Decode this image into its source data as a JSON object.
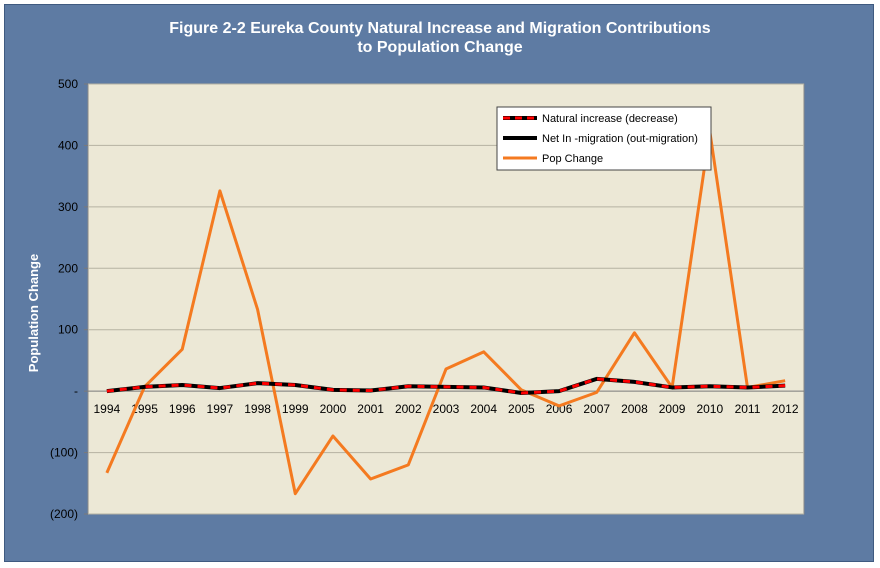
{
  "chart_data": {
    "type": "line",
    "title": [
      "Figure 2-2 Eureka County Natural Increase and Migration Contributions",
      "to Population Change"
    ],
    "ylabel": "Population Change",
    "xlabel": "",
    "ylim": [
      -200,
      500
    ],
    "yticks": [
      500,
      400,
      300,
      200,
      100,
      0,
      -100,
      -200
    ],
    "ytick_labels": [
      "500",
      "400",
      "300",
      "200",
      "100",
      "-",
      "(100)",
      "(200)"
    ],
    "categories": [
      "1994",
      "1995",
      "1996",
      "1997",
      "1998",
      "1999",
      "2000",
      "2001",
      "2002",
      "2003",
      "2004",
      "2005",
      "2006",
      "2007",
      "2008",
      "2009",
      "2010",
      "2011",
      "2012"
    ],
    "grid": true,
    "legend_position": "top-right",
    "series": [
      {
        "name": "Natural increase (decrease)",
        "color": "#ff0000",
        "style": "dashed-over-black",
        "values": [
          0,
          7,
          10,
          5,
          13,
          10,
          2,
          1,
          8,
          7,
          6,
          -3,
          0,
          20,
          15,
          6,
          8,
          6,
          9
        ]
      },
      {
        "name": "Net In -migration (out-migration)",
        "color": "#000000",
        "values": [
          0,
          7,
          10,
          5,
          13,
          10,
          2,
          1,
          8,
          7,
          6,
          -3,
          0,
          20,
          15,
          6,
          8,
          6,
          9
        ]
      },
      {
        "name": "Pop Change",
        "color": "#f47a20",
        "values": [
          -133,
          7,
          68,
          326,
          133,
          -167,
          -73,
          -143,
          -120,
          36,
          64,
          2,
          -24,
          -2,
          95,
          6,
          423,
          6,
          17
        ]
      }
    ]
  }
}
